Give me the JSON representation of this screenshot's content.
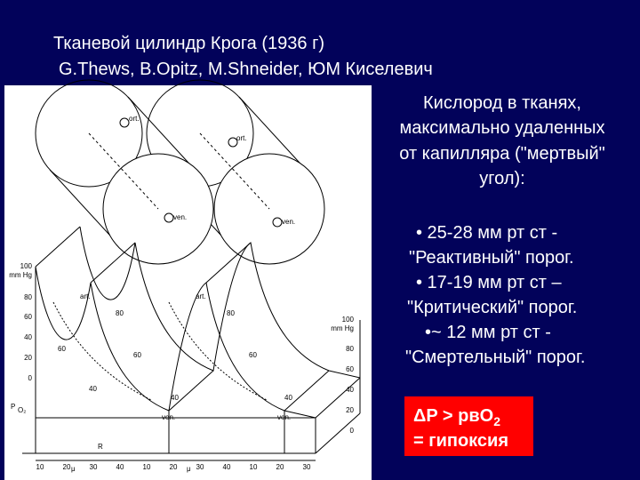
{
  "title": {
    "line1": "Тканевой цилиндр Крога (1936 г)",
    "line2": "G.Thews, B.Opitz, M.Shneider, ЮМ Киселевич"
  },
  "text": {
    "heading": [
      "Кислород в тканях,",
      "максимально удаленных",
      "от капилляра (\"мертвый\"",
      "угол):"
    ],
    "bullets": [
      "• 25-28 мм рт ст  -",
      "\"Реактивный\" порог.",
      "• 17-19 мм рт ст –",
      "\"Критический\" порог.",
      "•~ 12 мм рт ст  -",
      "\"Смертельный\" порог."
    ]
  },
  "conclusion": {
    "formula": "ΔP > рвO",
    "formula_sub": "2",
    "line2": "= гипоксия"
  },
  "diagram": {
    "labels": [
      "ort.",
      "ort.",
      "ven.",
      "ven.",
      "art.",
      "art.",
      "ven.",
      "ven.",
      "R",
      "μ",
      "μ",
      "80",
      "60",
      "40",
      "80",
      "60",
      "40",
      "60",
      "40"
    ],
    "left_axis": [
      "100",
      "mm Hg",
      "80",
      "60",
      "40",
      "20",
      "0"
    ],
    "left_axis_title": "P",
    "left_axis_sub": "O₂",
    "right_axis": [
      "100",
      "mm Hg",
      "80",
      "60",
      "40",
      "20",
      "0"
    ],
    "bottom_axis": [
      "10",
      "20",
      "30",
      "40",
      "10",
      "20",
      "30",
      "40",
      "10",
      "20",
      "30"
    ]
  }
}
